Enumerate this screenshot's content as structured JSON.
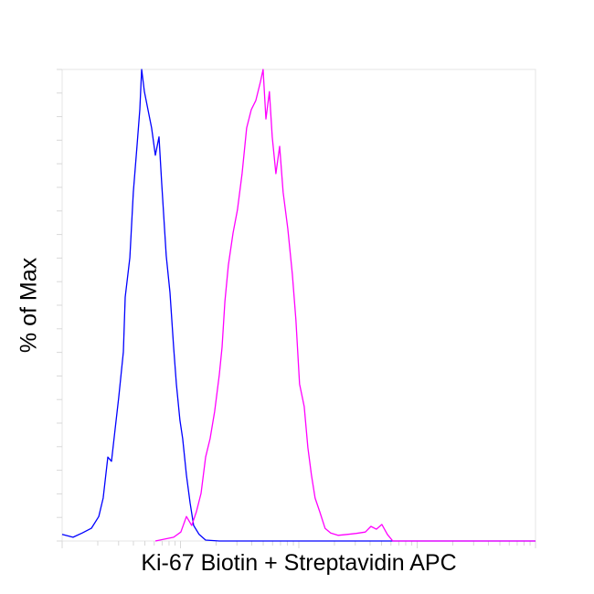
{
  "chart_data": {
    "type": "line",
    "title": "",
    "xlabel": "Ki-67 Biotin + Streptavidin APC",
    "ylabel": "% of Max",
    "xscale": "log",
    "xlim": [
      0,
      256
    ],
    "ylim": [
      0,
      100
    ],
    "grid": false,
    "legend": "none",
    "series": [
      {
        "color": "#0000ff",
        "x": [
          0,
          5.9,
          10.9,
          15.8,
          19.8,
          22.2,
          24.7,
          26.7,
          28.6,
          30.6,
          33.1,
          34.1,
          36.6,
          38.5,
          40.5,
          42.0,
          43.0,
          44.5,
          46.4,
          48.4,
          50.4,
          52.4,
          53.8,
          56.3,
          58.3,
          60.3,
          61.8,
          63.7,
          65.2,
          67.2,
          69.2,
          71.1,
          74.1,
          77.6,
          85,
          256
        ],
        "y": [
          1.4,
          0.8,
          1.7,
          2.7,
          5.2,
          9.1,
          17.8,
          16.9,
          23.6,
          30.4,
          40.1,
          51.7,
          60.1,
          74.0,
          83.7,
          91.5,
          100,
          95.3,
          91.5,
          87.6,
          81.8,
          85.7,
          76.0,
          60.5,
          52.7,
          41.1,
          33.3,
          25.6,
          21.7,
          14.0,
          8.1,
          3.3,
          1.4,
          0.2,
          0,
          0
        ]
      },
      {
        "color": "#ff00ff",
        "x": [
          50.4,
          60.3,
          64.2,
          67.2,
          70.1,
          72.6,
          75.1,
          77.6,
          80.0,
          82.5,
          85.0,
          86.5,
          88.0,
          89.9,
          92.4,
          94.8,
          97.3,
          99.8,
          102.3,
          104.7,
          107.2,
          108.7,
          110.2,
          112.1,
          113.6,
          115.6,
          117.6,
          119.5,
          122.0,
          124.5,
          126.4,
          128.4,
          130.9,
          132.9,
          134.8,
          136.8,
          139.3,
          142.2,
          145.2,
          149.2,
          154.1,
          159.1,
          164.0,
          167.0,
          169.9,
          172.9,
          175.9,
          178.8,
          256
        ],
        "y": [
          0,
          0.8,
          1.9,
          5.2,
          3.3,
          6.2,
          10.1,
          17.8,
          21.7,
          27.5,
          35.3,
          41.1,
          50.8,
          58.5,
          65.3,
          70.2,
          77.9,
          87.6,
          91.5,
          93.4,
          97.3,
          100,
          89.5,
          95.3,
          85.7,
          77.9,
          83.7,
          74.0,
          66.3,
          56.6,
          46.9,
          33.3,
          28.5,
          19.8,
          14.0,
          9.1,
          6.2,
          2.7,
          1.7,
          1.2,
          1.4,
          1.6,
          1.9,
          3.1,
          2.5,
          3.5,
          1.4,
          0,
          0
        ]
      }
    ]
  }
}
